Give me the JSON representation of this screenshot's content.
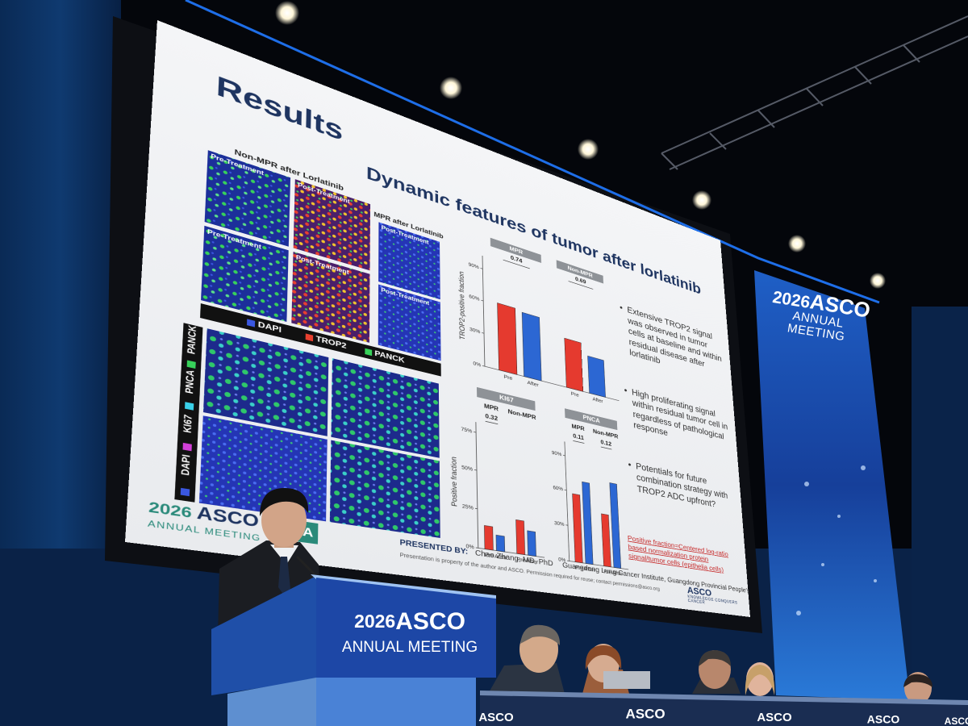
{
  "slide": {
    "title": "Results",
    "subtitle": "Dynamic features of tumor after lorlatinib",
    "images": {
      "non_mpr_header": "Non-MPR after Lorlatinib",
      "mpr_header": "MPR after Lorlatinib",
      "panels": [
        "Pre-Treatment",
        "Post-Treatment",
        "Pre-Treatment",
        "Post-Treatment",
        "Post-Treatment",
        "Post-Treatment"
      ],
      "legend_top": [
        "DAPI",
        "TROP2",
        "PANCK"
      ],
      "legend_side": [
        "DAPI",
        "KI67",
        "PNCA",
        "PANCK"
      ]
    },
    "charts": [
      {
        "y_label": "TROP2-positive fraction",
        "ylim": [
          0,
          100
        ],
        "yticks": [
          {
            "value": 0,
            "label": "0%"
          },
          {
            "value": 30,
            "label": "30%"
          },
          {
            "value": 60,
            "label": "60%"
          },
          {
            "value": 90,
            "label": "90%"
          }
        ],
        "colors": [
          "#e53a2f",
          "#2c67d3"
        ],
        "groups": [
          {
            "name": "MPR",
            "p_value": 0.74,
            "bars": [
              {
                "label": "Pre",
                "value": 62
              },
              {
                "label": "After",
                "value": 60
              }
            ]
          },
          {
            "name": "Non-MPR",
            "p_value": 0.69,
            "bars": [
              {
                "label": "Pre",
                "value": 47
              },
              {
                "label": "After",
                "value": 36
              }
            ]
          }
        ]
      },
      {
        "header": "KI67",
        "y_label": "Positive fraction",
        "ylim": [
          0,
          80
        ],
        "yticks": [
          {
            "value": 0,
            "label": "0%"
          },
          {
            "value": 25,
            "label": "25%"
          },
          {
            "value": 50,
            "label": "50%"
          },
          {
            "value": 75,
            "label": "75%"
          }
        ],
        "colors": [
          "#e53a2f",
          "#2c67d3"
        ],
        "groups": [
          {
            "name": "MPR",
            "p_value": 0.32,
            "bars": [
              {
                "label": "Pre",
                "value": 15
              },
              {
                "label": "After",
                "value": 10
              }
            ]
          },
          {
            "name": "Non-MPR",
            "bars": [
              {
                "label": "Pre",
                "value": 22
              },
              {
                "label": "After",
                "value": 16
              }
            ]
          }
        ]
      },
      {
        "header": "PNCA",
        "ylim": [
          0,
          100
        ],
        "yticks": [
          {
            "value": 0,
            "label": "0%"
          },
          {
            "value": 30,
            "label": "30%"
          },
          {
            "value": 60,
            "label": "60%"
          },
          {
            "value": 90,
            "label": "90%"
          }
        ],
        "colors": [
          "#e53a2f",
          "#2c67d3"
        ],
        "groups": [
          {
            "name": "MPR",
            "p_value": 0.11,
            "bars": [
              {
                "label": "Pre",
                "value": 58
              },
              {
                "label": "After",
                "value": 70
              }
            ]
          },
          {
            "name": "Non-MPR",
            "p_value": 0.12,
            "bars": [
              {
                "label": "Pre",
                "value": 45
              },
              {
                "label": "After",
                "value": 74
              }
            ]
          }
        ]
      }
    ],
    "bullets": [
      "Extensive TROP2 signal was observed in tumor cells at baseline and within residual disease after lorlatinib",
      "High proliferating signal within residual tumor cell in regardless of pathological response",
      "Potentials for future combination strategy with TROP2 ADC upfront?"
    ],
    "footnote": "Positive fraction=Centered log-ratio based normalization protein signal/tumor cells (epithelia cells)",
    "presented_by_label": "PRESENTED BY:",
    "presenter": "Chao Zhang, MD, PhD",
    "affiliation": "Guangdong Lung Cancer Institute, Guangdong Provincial People's Hospital",
    "disclaimer": "Presentation is property of the author and ASCO. Permission required for reuse; contact permissions@asco.org",
    "logo": {
      "year": "2026",
      "brand": "ASCO",
      "subtitle": "ANNUAL MEETING"
    },
    "hashtag": "#A",
    "asco_logo": {
      "brand": "ASCO",
      "tagline": "KNOWLEDGE CONQUERS CANCER"
    }
  },
  "banner": {
    "year": "2026",
    "brand": "ASCO",
    "subtitle": "ANNUAL MEETING"
  },
  "podium": {
    "year": "2026",
    "brand": "ASCO",
    "subtitle": "ANNUAL MEETING"
  },
  "table_signs": [
    "ASCO",
    "ASCO",
    "ASCO",
    "ASCO",
    "ASCO"
  ]
}
